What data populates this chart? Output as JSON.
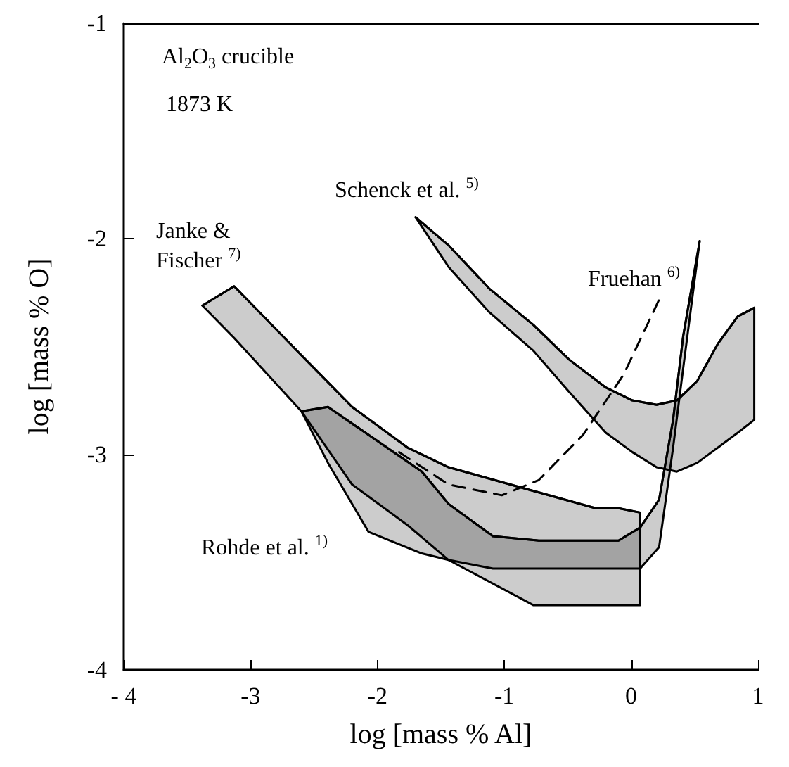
{
  "chart_data": {
    "type": "line",
    "xlabel": "log [mass % Al]",
    "ylabel": "log [mass % O]",
    "xlim": [
      -4,
      1
    ],
    "xticks": [
      {
        "value": -4,
        "label": "- 4"
      },
      -3,
      -2,
      -1,
      0,
      1
    ],
    "ylim": [
      -4,
      -1
    ],
    "yticks": [
      -4,
      -3,
      -2,
      -1
    ],
    "grid": false,
    "marker": "none",
    "annotations": [
      "Al$_{2}$O$_{3}$ crucible",
      "1873 K",
      "Janke &\nFischer $^{7)}$",
      "Schenck et al. $^{5)}$",
      "Fruehan $^{6)}$",
      "Rohde et al. $^{1)}$"
    ],
    "series": [
      {
        "color": "#000000",
        "x": [
          -3.38,
          -3.13,
          -2.6,
          -2.2,
          -1.76,
          -1.44,
          -0.77,
          -0.28,
          -0.1,
          0.07
        ],
        "values": [
          -2.31,
          -2.22,
          -2.54,
          -2.78,
          -2.97,
          -3.06,
          -3.17,
          -3.25,
          -3.25,
          -3.27
        ],
        "upper": [
          -2.31,
          -2.22,
          -2.54,
          -2.78,
          -2.97,
          -3.06,
          -3.17,
          -3.25,
          -3.25,
          -3.27
        ],
        "lower": [
          -2.31,
          -2.46,
          -2.8,
          -3.14,
          -3.33,
          -3.49,
          -3.7,
          -3.7,
          -3.7,
          -3.7
        ]
      },
      {
        "color": "#000000",
        "x": [
          -2.6,
          -2.39,
          -2.07,
          -1.65,
          -1.44,
          -1.09,
          -0.73,
          -0.1,
          0.07,
          0.22,
          0.33,
          0.41,
          0.54
        ],
        "values": [
          -2.8,
          -2.78,
          -2.91,
          -3.08,
          -3.23,
          -3.38,
          -3.4,
          -3.4,
          -3.34,
          -3.21,
          -2.84,
          -2.45,
          -2.01
        ],
        "upper": [
          -2.8,
          -2.78,
          -2.91,
          -3.08,
          -3.23,
          -3.38,
          -3.4,
          -3.4,
          -3.34,
          -3.21,
          -2.84,
          -2.45,
          -2.01
        ],
        "lower": [
          -2.8,
          -3.04,
          -3.36,
          -3.46,
          -3.49,
          -3.53,
          -3.53,
          -3.53,
          -3.53,
          -3.43,
          -2.97,
          -2.6,
          -2.01
        ]
      },
      {
        "color": "#000000",
        "x": [
          -1.7,
          -1.44,
          -1.12,
          -0.77,
          -0.49,
          -0.2,
          0.01,
          0.2,
          0.36,
          0.52,
          0.68,
          0.84,
          0.97
        ],
        "values": [
          -1.9,
          -2.03,
          -2.23,
          -2.4,
          -2.56,
          -2.69,
          -2.75,
          -2.77,
          -2.75,
          -2.66,
          -2.49,
          -2.36,
          -2.32
        ],
        "upper": [
          -1.9,
          -2.03,
          -2.23,
          -2.4,
          -2.56,
          -2.69,
          -2.75,
          -2.77,
          -2.75,
          -2.66,
          -2.49,
          -2.36,
          -2.32
        ],
        "lower": [
          -1.9,
          -2.13,
          -2.34,
          -2.52,
          -2.71,
          -2.9,
          -2.99,
          -3.06,
          -3.08,
          -3.04,
          -2.97,
          -2.9,
          -2.84
        ]
      },
      {
        "color": "#000000",
        "line_style": "dashed",
        "x": [
          -1.83,
          -1.44,
          -1.02,
          -0.73,
          -0.38,
          -0.06,
          0.23
        ],
        "values": [
          -2.99,
          -3.14,
          -3.19,
          -3.12,
          -2.91,
          -2.63,
          -2.27
        ]
      }
    ]
  }
}
